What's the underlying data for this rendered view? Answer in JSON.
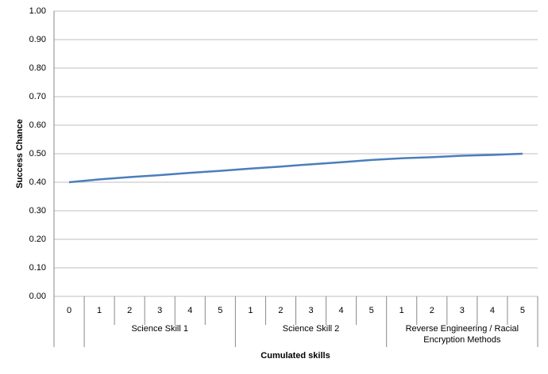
{
  "chart_data": {
    "type": "line",
    "x_title": "Cumulated skills",
    "y_title": "Success Chance",
    "categories": [
      "0",
      "1",
      "2",
      "3",
      "4",
      "5",
      "1",
      "2",
      "3",
      "4",
      "5",
      "1",
      "2",
      "3",
      "4",
      "5"
    ],
    "groups": [
      {
        "name": "Science Skill 1",
        "first": 1,
        "last": 5
      },
      {
        "name": "Science Skill 2",
        "first": 6,
        "last": 10
      },
      {
        "name": "Reverse Engineering / Racial Encryption Methods",
        "first": 11,
        "last": 15
      }
    ],
    "series": [
      {
        "color": "#4a7ebb",
        "values": [
          0.4,
          0.41,
          0.418,
          0.425,
          0.433,
          0.44,
          0.448,
          0.455,
          0.463,
          0.47,
          0.478,
          0.484,
          0.488,
          0.493,
          0.496,
          0.5
        ]
      }
    ],
    "ylim": [
      0,
      1
    ],
    "yticks": [
      {
        "value": 0,
        "label": "0.00"
      },
      {
        "value": 0.1,
        "label": "0.10"
      },
      {
        "value": 0.2,
        "label": "0.20"
      },
      {
        "value": 0.3,
        "label": "0.30"
      },
      {
        "value": 0.4,
        "label": "0.40"
      },
      {
        "value": 0.5,
        "label": "0.50"
      },
      {
        "value": 0.6,
        "label": "0.60"
      },
      {
        "value": 0.7,
        "label": "0.70"
      },
      {
        "value": 0.8,
        "label": "0.80"
      },
      {
        "value": 0.9,
        "label": "0.90"
      },
      {
        "value": 1,
        "label": "1.00"
      }
    ],
    "grid": true
  }
}
